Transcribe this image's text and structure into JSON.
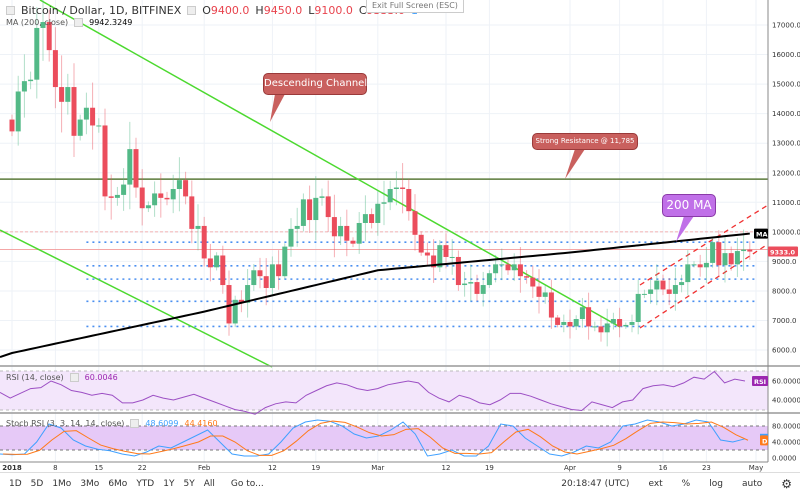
{
  "header": {
    "symbol": "Bitcoin / Dollar, 1D, BITFINEX",
    "o_label": "O",
    "o": "9400.0",
    "h_label": "H",
    "h": "9450.0",
    "l_label": "L",
    "l": "9100.0",
    "c_label": "C",
    "c": "9333.0",
    "alerts": "1",
    "exit_fullscreen": "Exit Full Screen (ESC)"
  },
  "ma_legend": {
    "label": "MA (200, close)",
    "value": "9942.3249"
  },
  "rsi_legend": {
    "label": "RSI (14, close)",
    "value": "60.0046"
  },
  "stoch_legend": {
    "label": "Stoch RSI (3, 3, 14, 14, close)",
    "k": "48.6099",
    "d": "44.4160"
  },
  "annotations": {
    "channel": "Descending Channel",
    "resistance": "Strong Resistance @ 11,785",
    "ma": "200 MA"
  },
  "badges": {
    "ma": "MA",
    "price": "9333.0",
    "rsi": "RSI",
    "stoch": "D"
  },
  "colors": {
    "up": "#53b987",
    "down": "#eb4d5c",
    "ma": "#000000",
    "channel": "#4cd92f",
    "resistance": "#5a7a3a",
    "rsi": "#9c4fc4",
    "k": "#3fa0ff",
    "d": "#ff7a1a"
  },
  "price_axis": [
    "17000.0",
    "16000.0",
    "15000.0",
    "14000.0",
    "13000.0",
    "12000.0",
    "11000.0",
    "10000.0",
    "9000.0",
    "8000.0",
    "7000.0",
    "6000.0"
  ],
  "rsi_axis": [
    "60.0000",
    "40.0000"
  ],
  "stoch_axis": [
    "80.0000",
    "40.0000",
    "0.0000"
  ],
  "time_axis": [
    [
      "2018",
      0
    ],
    [
      "8",
      7
    ],
    [
      "15",
      14
    ],
    [
      "22",
      21
    ],
    [
      "Feb",
      31
    ],
    [
      "12",
      42
    ],
    [
      "19",
      49
    ],
    [
      "Mar",
      59
    ],
    [
      "12",
      70
    ],
    [
      "19",
      77
    ],
    [
      "Apr",
      90
    ],
    [
      "9",
      98
    ],
    [
      "16",
      105
    ],
    [
      "23",
      112
    ],
    [
      "May",
      120
    ]
  ],
  "bottom": {
    "ranges": [
      "1D",
      "5D",
      "1Mo",
      "3Mo",
      "6Mo",
      "YTD",
      "1Y",
      "5Y",
      "All"
    ],
    "goto": "Go to...",
    "time": "20:18:47 (UTC)",
    "ext": "ext",
    "pct": "%",
    "log": "log",
    "auto": "auto"
  },
  "chart_data": {
    "type": "candlestick",
    "start": "2018-01-01",
    "open_first": 13800,
    "closes": [
      13400,
      14750,
      15100,
      15150,
      16900,
      17100,
      16150,
      14900,
      14400,
      14900,
      13250,
      13800,
      14200,
      13600,
      13600,
      11200,
      11150,
      11250,
      11600,
      12800,
      11500,
      10800,
      10900,
      11300,
      11150,
      11100,
      11450,
      11750,
      11200,
      10100,
      10200,
      9100,
      8800,
      9200,
      8200,
      6900,
      7700,
      7600,
      8200,
      8700,
      8500,
      8100,
      8900,
      8500,
      9500,
      10100,
      10200,
      11100,
      10400,
      11150,
      11200,
      10500,
      9850,
      10200,
      9700,
      9600,
      10300,
      10600,
      10300,
      10950,
      11000,
      11450,
      11500,
      11450,
      10700,
      9900,
      9300,
      9200,
      8800,
      9550,
      9150,
      9150,
      8200,
      8250,
      8300,
      7900,
      8200,
      8600,
      8900,
      8900,
      8700,
      8900,
      8500,
      8450,
      8150,
      7800,
      7950,
      7100,
      6850,
      6950,
      6800,
      7050,
      7450,
      6800,
      6800,
      6600,
      6900,
      7050,
      6800,
      6850,
      6950,
      7900,
      7900,
      8050,
      8350,
      8050,
      7900,
      8200,
      8300,
      8900,
      8900,
      8800,
      8950,
      9650,
      8870,
      9280,
      8900,
      9350,
      9400,
      9333
    ],
    "ma200": [
      [
        0,
        5900
      ],
      [
        31,
        7300
      ],
      [
        59,
        8700
      ],
      [
        90,
        9300
      ],
      [
        119,
        9942
      ]
    ],
    "resistance": 11785,
    "support_levels": [
      9650,
      8850,
      8400,
      7650,
      6800
    ],
    "red_levels": [
      10000,
      9400
    ],
    "price_range": [
      5700,
      17700
    ],
    "rsi": [
      48,
      42,
      47,
      52,
      53,
      60,
      56,
      50,
      48,
      45,
      47,
      45,
      37,
      37,
      40,
      45,
      42,
      40,
      43,
      46,
      42,
      38,
      34,
      30,
      28,
      25,
      32,
      36,
      38,
      37,
      45,
      50,
      55,
      58,
      56,
      52,
      50,
      52,
      56,
      58,
      60,
      58,
      48,
      42,
      38,
      45,
      42,
      37,
      35,
      40,
      47,
      47,
      44,
      40,
      36,
      33,
      30,
      29,
      38,
      35,
      32,
      38,
      40,
      52,
      55,
      56,
      54,
      58,
      64,
      62,
      70,
      58,
      62,
      60
    ],
    "stoch_k": [
      10,
      8,
      10,
      40,
      85,
      75,
      45,
      30,
      22,
      18,
      10,
      5,
      15,
      30,
      25,
      40,
      55,
      70,
      40,
      10,
      5,
      5,
      10,
      40,
      75,
      90,
      95,
      92,
      80,
      60,
      50,
      55,
      70,
      90,
      60,
      5,
      10,
      20,
      5,
      5,
      30,
      85,
      80,
      50,
      30,
      10,
      5,
      15,
      30,
      25,
      40,
      80,
      85,
      95,
      90,
      80,
      85,
      95,
      90,
      45,
      40,
      48
    ]
  }
}
